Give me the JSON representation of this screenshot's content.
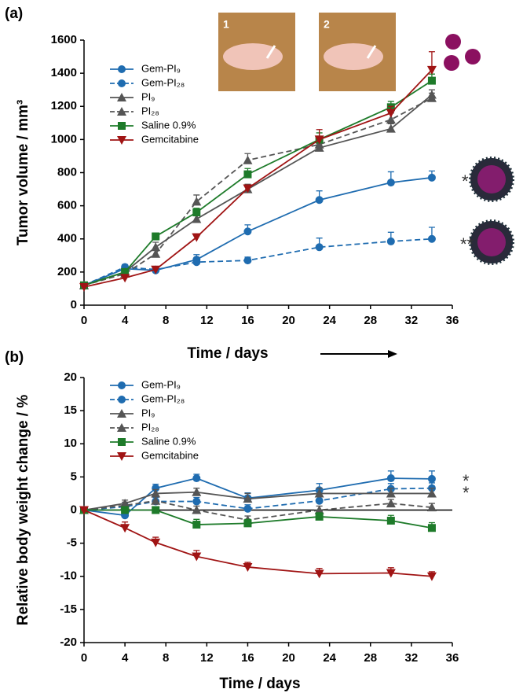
{
  "chart_data": [
    {
      "type": "line",
      "x_label": "Time / days",
      "y_label": "Tumor volume / mm³",
      "x": [
        0,
        4,
        7,
        11,
        16,
        23,
        30,
        34
      ],
      "xlim": [
        0,
        36
      ],
      "xticks": [
        0,
        4,
        8,
        12,
        16,
        20,
        24,
        28,
        32,
        36
      ],
      "ylim": [
        0,
        1600
      ],
      "yticks": [
        0,
        200,
        400,
        600,
        800,
        1000,
        1200,
        1400,
        1600
      ],
      "annotations": [
        "(a)",
        "1",
        "2",
        "*",
        "**"
      ],
      "series": [
        {
          "name": "Gem-PI₉",
          "color": "#1f6cb0",
          "marker": "circle",
          "dashed": false,
          "values": [
            120,
            220,
            210,
            275,
            445,
            635,
            740,
            770
          ],
          "errors": [
            10,
            15,
            15,
            30,
            40,
            55,
            65,
            40
          ]
        },
        {
          "name": "Gem-PI₂₈",
          "color": "#1f6cb0",
          "marker": "circle",
          "dashed": true,
          "values": [
            120,
            230,
            215,
            260,
            270,
            350,
            385,
            400
          ],
          "errors": [
            10,
            15,
            15,
            20,
            20,
            55,
            55,
            70
          ]
        },
        {
          "name": "PI₉",
          "color": "#555555",
          "marker": "triangle",
          "dashed": false,
          "values": [
            120,
            200,
            350,
            520,
            700,
            950,
            1065,
            1270
          ],
          "errors": [
            10,
            15,
            30,
            30,
            30,
            25,
            30,
            30
          ]
        },
        {
          "name": "PI₂₈",
          "color": "#555555",
          "marker": "triangle",
          "dashed": true,
          "values": [
            120,
            190,
            310,
            625,
            875,
            970,
            1120,
            1250
          ],
          "errors": [
            10,
            15,
            30,
            40,
            40,
            30,
            40,
            30
          ]
        },
        {
          "name": "Saline 0.9%",
          "color": "#1e7b2a",
          "marker": "square",
          "dashed": false,
          "values": [
            120,
            200,
            415,
            560,
            790,
            1000,
            1195,
            1355
          ],
          "errors": [
            10,
            15,
            20,
            25,
            35,
            40,
            35,
            40
          ]
        },
        {
          "name": "Gemcitabine",
          "color": "#a01414",
          "marker": "triangle-down",
          "dashed": false,
          "values": [
            110,
            165,
            215,
            410,
            705,
            1000,
            1160,
            1420
          ],
          "errors": [
            10,
            10,
            15,
            20,
            20,
            60,
            40,
            110
          ]
        }
      ]
    },
    {
      "type": "line",
      "x_label": "Time / days",
      "y_label": "Relative body weight change / %",
      "x": [
        0,
        4,
        7,
        11,
        16,
        23,
        30,
        34
      ],
      "xlim": [
        0,
        36
      ],
      "xticks": [
        0,
        4,
        8,
        12,
        16,
        20,
        24,
        28,
        32,
        36
      ],
      "ylim": [
        -20,
        20
      ],
      "yticks": [
        -20,
        -15,
        -10,
        -5,
        0,
        5,
        10,
        15,
        20
      ],
      "annotations": [
        "(b)",
        "*",
        "*"
      ],
      "series": [
        {
          "name": "Gem-PI₉",
          "color": "#1f6cb0",
          "marker": "circle",
          "dashed": false,
          "values": [
            0,
            -0.8,
            3.3,
            4.8,
            1.8,
            3.0,
            4.8,
            4.7
          ],
          "errors": [
            0,
            0.5,
            0.6,
            0.6,
            0.8,
            1.0,
            1.1,
            1.2
          ]
        },
        {
          "name": "Gem-PI₂₈",
          "color": "#1f6cb0",
          "marker": "circle",
          "dashed": true,
          "values": [
            0,
            0.5,
            1.3,
            1.3,
            0.2,
            1.4,
            3.2,
            3.3
          ],
          "errors": [
            0,
            0.5,
            0.6,
            0.6,
            0.6,
            0.8,
            0.8,
            0.8
          ]
        },
        {
          "name": "PI₉",
          "color": "#555555",
          "marker": "triangle",
          "dashed": false,
          "values": [
            0,
            1.0,
            2.5,
            2.7,
            1.7,
            2.5,
            2.5,
            2.5
          ],
          "errors": [
            0,
            0.5,
            0.6,
            0.6,
            0.8,
            0.8,
            0.8,
            0.8
          ]
        },
        {
          "name": "PI₂₈",
          "color": "#555555",
          "marker": "triangle",
          "dashed": true,
          "values": [
            0,
            0.7,
            1.4,
            0,
            -1.5,
            0,
            1.0,
            0.4
          ],
          "errors": [
            0,
            0.5,
            0.6,
            0.6,
            0.6,
            0.6,
            0.6,
            0.6
          ]
        },
        {
          "name": "Saline 0.9%",
          "color": "#1e7b2a",
          "marker": "square",
          "dashed": false,
          "values": [
            0,
            0,
            0,
            -2.2,
            -2.0,
            -1.0,
            -1.6,
            -2.7
          ],
          "errors": [
            0,
            0.5,
            0.5,
            0.8,
            0.6,
            0.6,
            0.8,
            0.8
          ]
        },
        {
          "name": "Gemcitabine",
          "color": "#a01414",
          "marker": "triangle-down",
          "dashed": false,
          "values": [
            0,
            -2.7,
            -4.9,
            -7.0,
            -8.6,
            -9.6,
            -9.5,
            -10.0
          ],
          "errors": [
            0,
            0.9,
            0.8,
            0.9,
            0.7,
            0.8,
            0.8,
            0.7
          ]
        }
      ]
    }
  ]
}
